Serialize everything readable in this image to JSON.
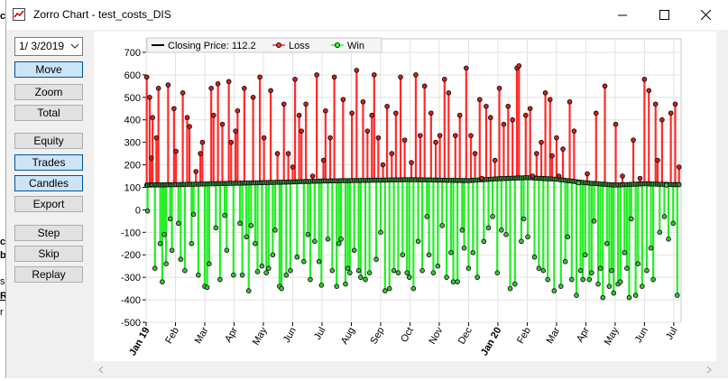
{
  "window": {
    "title": "Zorro Chart - test_costs_DIS"
  },
  "background_text": [
    "ci",
    "c",
    "b",
    "s",
    "R",
    "r"
  ],
  "sidebar": {
    "date_value": "1/ 3/2019",
    "buttons": [
      {
        "label": "Move",
        "active": true
      },
      {
        "label": "Zoom",
        "active": false
      },
      {
        "label": "Total",
        "active": false
      },
      {
        "label": "Equity",
        "active": false
      },
      {
        "label": "Trades",
        "active": true
      },
      {
        "label": "Candles",
        "active": true
      },
      {
        "label": "Export",
        "active": false
      },
      {
        "label": "Step",
        "active": false
      },
      {
        "label": "Skip",
        "active": false
      },
      {
        "label": "Replay",
        "active": false
      }
    ]
  },
  "chart_data": {
    "type": "scatter",
    "legend_position": "top-left",
    "series": [
      {
        "name": "Closing Price: 112.2",
        "color": "#000000"
      },
      {
        "name": "Loss",
        "color": "#ff3030"
      },
      {
        "name": "Win",
        "color": "#30ff30"
      }
    ],
    "x_tick_labels": [
      "Jan 19",
      "Feb",
      "Mar",
      "Apr",
      "May",
      "Jun",
      "Jul",
      "Aug",
      "Sep",
      "Oct",
      "Nov",
      "Dec",
      "Jan 20",
      "Feb",
      "Mar",
      "Apr",
      "May",
      "Jun",
      "Jul"
    ],
    "y_ticks": [
      700,
      600,
      500,
      400,
      300,
      200,
      100,
      0,
      -100,
      -200,
      -300,
      -400,
      -500
    ],
    "ylim": [
      -500,
      760
    ],
    "x_months": [
      0,
      18
    ],
    "grid": true,
    "closing_price": [
      [
        0,
        110
      ],
      [
        1,
        112
      ],
      [
        2,
        115
      ],
      [
        3,
        118
      ],
      [
        4,
        121
      ],
      [
        5,
        124
      ],
      [
        6,
        128
      ],
      [
        7,
        130
      ],
      [
        8,
        132
      ],
      [
        9,
        134
      ],
      [
        10,
        132
      ],
      [
        11,
        130
      ],
      [
        12,
        138
      ],
      [
        13,
        143
      ],
      [
        14,
        136
      ],
      [
        15,
        120
      ],
      [
        16,
        110
      ],
      [
        17,
        116
      ],
      [
        18,
        112
      ]
    ],
    "trades": [
      [
        0.02,
        590
      ],
      [
        0.05,
        -5
      ],
      [
        0.12,
        500
      ],
      [
        0.18,
        230
      ],
      [
        0.22,
        410
      ],
      [
        0.3,
        -260
      ],
      [
        0.35,
        320
      ],
      [
        0.42,
        540
      ],
      [
        0.48,
        -150
      ],
      [
        0.55,
        -320
      ],
      [
        0.62,
        -110
      ],
      [
        0.68,
        -240
      ],
      [
        0.75,
        555
      ],
      [
        0.82,
        -40
      ],
      [
        0.88,
        -180
      ],
      [
        0.95,
        450
      ],
      [
        1.02,
        260
      ],
      [
        1.1,
        -60
      ],
      [
        1.18,
        -220
      ],
      [
        1.25,
        520
      ],
      [
        1.32,
        -270
      ],
      [
        1.4,
        410
      ],
      [
        1.48,
        370
      ],
      [
        1.55,
        -150
      ],
      [
        1.62,
        -20
      ],
      [
        1.7,
        170
      ],
      [
        1.78,
        -290
      ],
      [
        1.85,
        250
      ],
      [
        1.92,
        300
      ],
      [
        2.0,
        -340
      ],
      [
        2.08,
        -345
      ],
      [
        2.15,
        -240
      ],
      [
        2.22,
        540
      ],
      [
        2.3,
        420
      ],
      [
        2.38,
        -80
      ],
      [
        2.45,
        560
      ],
      [
        2.52,
        -310
      ],
      [
        2.6,
        380
      ],
      [
        2.68,
        -25
      ],
      [
        2.75,
        -180
      ],
      [
        2.82,
        570
      ],
      [
        2.9,
        300
      ],
      [
        2.98,
        -290
      ],
      [
        3.05,
        350
      ],
      [
        3.12,
        440
      ],
      [
        3.2,
        -60
      ],
      [
        3.28,
        -290
      ],
      [
        3.35,
        540
      ],
      [
        3.42,
        -120
      ],
      [
        3.5,
        -360
      ],
      [
        3.58,
        -70
      ],
      [
        3.65,
        500
      ],
      [
        3.72,
        -150
      ],
      [
        3.8,
        -275
      ],
      [
        3.88,
        590
      ],
      [
        3.95,
        -250
      ],
      [
        4.02,
        320
      ],
      [
        4.1,
        -280
      ],
      [
        4.18,
        -260
      ],
      [
        4.25,
        530
      ],
      [
        4.32,
        -200
      ],
      [
        4.4,
        -90
      ],
      [
        4.48,
        250
      ],
      [
        4.55,
        -340
      ],
      [
        4.62,
        -350
      ],
      [
        4.7,
        470
      ],
      [
        4.78,
        -290
      ],
      [
        4.85,
        250
      ],
      [
        4.92,
        -270
      ],
      [
        5.0,
        190
      ],
      [
        5.08,
        580
      ],
      [
        5.15,
        -210
      ],
      [
        5.22,
        420
      ],
      [
        5.3,
        350
      ],
      [
        5.38,
        -230
      ],
      [
        5.45,
        470
      ],
      [
        5.52,
        -110
      ],
      [
        5.6,
        -310
      ],
      [
        5.68,
        150
      ],
      [
        5.75,
        -140
      ],
      [
        5.82,
        600
      ],
      [
        5.9,
        -230
      ],
      [
        5.98,
        -335
      ],
      [
        6.05,
        220
      ],
      [
        6.12,
        440
      ],
      [
        6.2,
        -130
      ],
      [
        6.28,
        320
      ],
      [
        6.35,
        -270
      ],
      [
        6.42,
        590
      ],
      [
        6.5,
        -340
      ],
      [
        6.58,
        -150
      ],
      [
        6.65,
        -130
      ],
      [
        6.72,
        490
      ],
      [
        6.8,
        -330
      ],
      [
        6.88,
        -260
      ],
      [
        6.95,
        -280
      ],
      [
        7.02,
        430
      ],
      [
        7.1,
        -180
      ],
      [
        7.18,
        620
      ],
      [
        7.25,
        -270
      ],
      [
        7.32,
        -300
      ],
      [
        7.4,
        480
      ],
      [
        7.48,
        -310
      ],
      [
        7.55,
        350
      ],
      [
        7.62,
        -280
      ],
      [
        7.7,
        420
      ],
      [
        7.78,
        600
      ],
      [
        7.85,
        -220
      ],
      [
        7.92,
        320
      ],
      [
        8.0,
        -100
      ],
      [
        8.08,
        200
      ],
      [
        8.15,
        -360
      ],
      [
        8.22,
        460
      ],
      [
        8.3,
        -350
      ],
      [
        8.38,
        250
      ],
      [
        8.45,
        -270
      ],
      [
        8.52,
        430
      ],
      [
        8.6,
        -280
      ],
      [
        8.68,
        590
      ],
      [
        8.75,
        -200
      ],
      [
        8.82,
        310
      ],
      [
        8.9,
        -280
      ],
      [
        8.98,
        -300
      ],
      [
        9.05,
        210
      ],
      [
        9.12,
        -350
      ],
      [
        9.2,
        600
      ],
      [
        9.28,
        -140
      ],
      [
        9.35,
        330
      ],
      [
        9.42,
        -270
      ],
      [
        9.5,
        550
      ],
      [
        9.58,
        -30
      ],
      [
        9.65,
        -200
      ],
      [
        9.72,
        430
      ],
      [
        9.8,
        -280
      ],
      [
        9.88,
        300
      ],
      [
        9.95,
        -250
      ],
      [
        10.02,
        330
      ],
      [
        10.1,
        -70
      ],
      [
        10.18,
        580
      ],
      [
        10.25,
        -300
      ],
      [
        10.32,
        520
      ],
      [
        10.4,
        -190
      ],
      [
        10.48,
        -320
      ],
      [
        10.55,
        330
      ],
      [
        10.62,
        -320
      ],
      [
        10.7,
        420
      ],
      [
        10.78,
        -90
      ],
      [
        10.85,
        -170
      ],
      [
        10.92,
        630
      ],
      [
        11.0,
        -260
      ],
      [
        11.08,
        330
      ],
      [
        11.15,
        -190
      ],
      [
        11.22,
        250
      ],
      [
        11.3,
        -300
      ],
      [
        11.38,
        490
      ],
      [
        11.45,
        140
      ],
      [
        11.52,
        -140
      ],
      [
        11.6,
        460
      ],
      [
        11.68,
        -80
      ],
      [
        11.75,
        410
      ],
      [
        11.82,
        -30
      ],
      [
        11.9,
        220
      ],
      [
        11.98,
        -280
      ],
      [
        12.05,
        540
      ],
      [
        12.12,
        -90
      ],
      [
        12.2,
        380
      ],
      [
        12.28,
        -110
      ],
      [
        12.35,
        460
      ],
      [
        12.42,
        -350
      ],
      [
        12.5,
        400
      ],
      [
        12.58,
        -330
      ],
      [
        12.65,
        630
      ],
      [
        12.72,
        640
      ],
      [
        12.8,
        -140
      ],
      [
        12.88,
        -40
      ],
      [
        12.95,
        420
      ],
      [
        13.02,
        -120
      ],
      [
        13.1,
        450
      ],
      [
        13.18,
        150
      ],
      [
        13.25,
        -210
      ],
      [
        13.32,
        250
      ],
      [
        13.4,
        -260
      ],
      [
        13.48,
        300
      ],
      [
        13.55,
        -270
      ],
      [
        13.62,
        520
      ],
      [
        13.7,
        -310
      ],
      [
        13.78,
        490
      ],
      [
        13.85,
        240
      ],
      [
        13.92,
        -360
      ],
      [
        14.0,
        320
      ],
      [
        14.08,
        150
      ],
      [
        14.15,
        -340
      ],
      [
        14.22,
        270
      ],
      [
        14.3,
        -230
      ],
      [
        14.38,
        -120
      ],
      [
        14.45,
        480
      ],
      [
        14.52,
        -310
      ],
      [
        14.6,
        350
      ],
      [
        14.68,
        -380
      ],
      [
        14.75,
        120
      ],
      [
        14.82,
        -270
      ],
      [
        14.9,
        -310
      ],
      [
        14.98,
        -200
      ],
      [
        15.05,
        160
      ],
      [
        15.12,
        -310
      ],
      [
        15.2,
        -280
      ],
      [
        15.28,
        -50
      ],
      [
        15.35,
        430
      ],
      [
        15.42,
        -330
      ],
      [
        15.5,
        -260
      ],
      [
        15.58,
        -390
      ],
      [
        15.65,
        550
      ],
      [
        15.72,
        -150
      ],
      [
        15.8,
        -340
      ],
      [
        15.88,
        -270
      ],
      [
        15.95,
        -370
      ],
      [
        16.02,
        380
      ],
      [
        16.1,
        -330
      ],
      [
        16.18,
        -320
      ],
      [
        16.25,
        150
      ],
      [
        16.32,
        -190
      ],
      [
        16.4,
        -260
      ],
      [
        16.48,
        -390
      ],
      [
        16.55,
        -40
      ],
      [
        16.62,
        310
      ],
      [
        16.7,
        -380
      ],
      [
        16.78,
        -240
      ],
      [
        16.85,
        140
      ],
      [
        16.92,
        -340
      ],
      [
        17.0,
        580
      ],
      [
        17.08,
        -270
      ],
      [
        17.15,
        530
      ],
      [
        17.22,
        -170
      ],
      [
        17.3,
        -310
      ],
      [
        17.38,
        470
      ],
      [
        17.45,
        220
      ],
      [
        17.52,
        -100
      ],
      [
        17.6,
        400
      ],
      [
        17.68,
        -30
      ],
      [
        17.75,
        110
      ],
      [
        17.82,
        -130
      ],
      [
        17.9,
        430
      ],
      [
        17.98,
        -60
      ],
      [
        18.05,
        470
      ],
      [
        18.12,
        -380
      ],
      [
        18.18,
        190
      ]
    ]
  }
}
